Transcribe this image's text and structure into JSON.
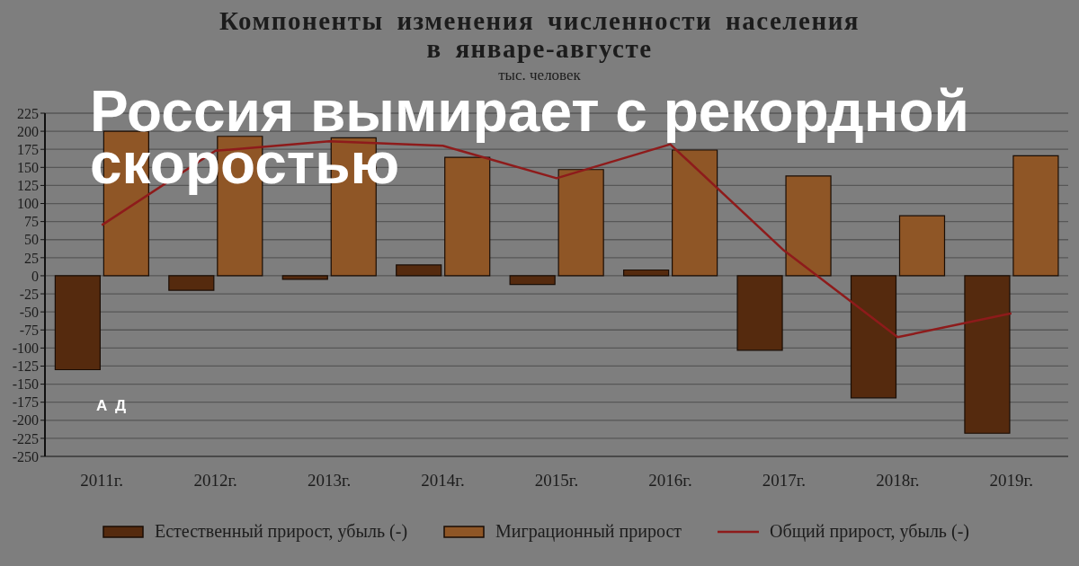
{
  "chart_data": {
    "type": "bar",
    "title": "Компоненты изменения численности населения\nв январе-августе",
    "subtitle": "тыс. человек",
    "annotations": [
      "Россия вымирает с рекордной скоростью",
      "А Д"
    ],
    "categories": [
      "2011г.",
      "2012г.",
      "2013г.",
      "2014г.",
      "2015г.",
      "2016г.",
      "2017г.",
      "2018г.",
      "2019г."
    ],
    "series": [
      {
        "name": "Естественный прирост, убыль (-)",
        "color": "#552a0e",
        "values": [
          -130,
          -20,
          -5,
          15,
          -12,
          8,
          -103,
          -169,
          -218
        ]
      },
      {
        "name": "Миграционный прирост",
        "color": "#8f5626",
        "values": [
          200,
          193,
          191,
          164,
          147,
          174,
          138,
          83,
          166
        ]
      },
      {
        "name": "Общий прирост, убыль (-)",
        "type": "line",
        "color": "#8e1b1b",
        "values": [
          70,
          173,
          186,
          180,
          135,
          182,
          35,
          -85,
          -52
        ]
      }
    ],
    "ylim": [
      -250,
      225
    ],
    "yticks": [
      225,
      200,
      175,
      150,
      125,
      100,
      75,
      50,
      25,
      0,
      -25,
      -50,
      -75,
      -100,
      -125,
      -150,
      -175,
      -200,
      -225,
      -250
    ],
    "grid": "y",
    "legend": "bottom"
  }
}
